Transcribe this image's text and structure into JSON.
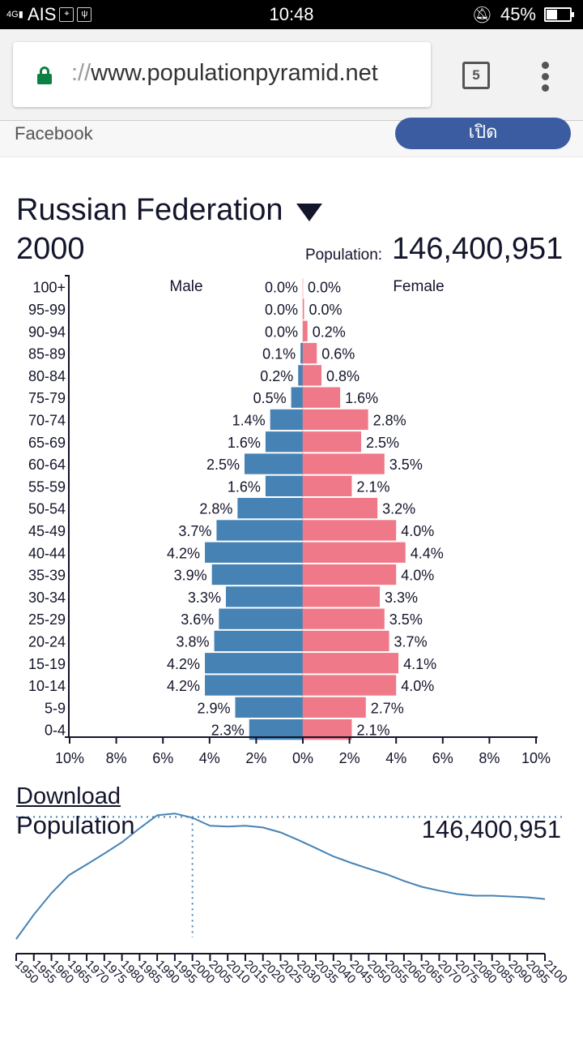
{
  "status_bar": {
    "network": "4G",
    "carrier": "AIS",
    "time": "10:48",
    "battery_percent_label": "45%",
    "battery_level": 0.45,
    "icons": [
      "signal-icon",
      "maps-notification-icon",
      "usb-icon",
      "mute-bell-icon",
      "battery-icon"
    ]
  },
  "browser": {
    "url_scheme": "://",
    "url_host": "www.populationpyramid.net",
    "tab_count": "5",
    "icons": [
      "lock-icon",
      "tabs-icon",
      "overflow-menu-icon"
    ]
  },
  "banner": {
    "label": "Facebook",
    "open_button": "เปิด"
  },
  "header": {
    "country": "Russian Federation",
    "year": "2000",
    "population_label": "Population:",
    "population_value": "146,400,951"
  },
  "colors": {
    "male": "#4682b4",
    "female": "#f07989",
    "line": "#4682b4",
    "text": "#13152b",
    "facebook": "#3b5ca0",
    "lock": "#0b8043"
  },
  "download_label": "Download",
  "chart_data": [
    {
      "type": "bar",
      "subtype": "population-pyramid",
      "title": "Russian Federation 2000",
      "legend": [
        "Male",
        "Female"
      ],
      "categories": [
        "100+",
        "95-99",
        "90-94",
        "85-89",
        "80-84",
        "75-79",
        "70-74",
        "65-69",
        "60-64",
        "55-59",
        "50-54",
        "45-49",
        "40-44",
        "35-39",
        "30-34",
        "25-29",
        "20-24",
        "15-19",
        "10-14",
        "5-9",
        "0-4"
      ],
      "series": [
        {
          "name": "Male",
          "values": [
            0.0,
            0.0,
            0.0,
            0.1,
            0.2,
            0.5,
            1.4,
            1.6,
            2.5,
            1.6,
            2.8,
            3.7,
            4.2,
            3.9,
            3.3,
            3.6,
            3.8,
            4.2,
            4.2,
            2.9,
            2.3
          ],
          "labels": [
            "0.0%",
            "0.0%",
            "0.0%",
            "0.1%",
            "0.2%",
            "0.5%",
            "1.4%",
            "1.6%",
            "2.5%",
            "1.6%",
            "2.8%",
            "3.7%",
            "4.2%",
            "3.9%",
            "3.3%",
            "3.6%",
            "3.8%",
            "4.2%",
            "4.2%",
            "2.9%",
            "2.3%"
          ]
        },
        {
          "name": "Female",
          "values": [
            0.0,
            0.05,
            0.2,
            0.6,
            0.8,
            1.6,
            2.8,
            2.5,
            3.5,
            2.1,
            3.2,
            4.0,
            4.4,
            4.0,
            3.3,
            3.5,
            3.7,
            4.1,
            4.0,
            2.7,
            2.1
          ],
          "labels": [
            "0.0%",
            "0.0%",
            "0.2%",
            "0.6%",
            "0.8%",
            "1.6%",
            "2.8%",
            "2.5%",
            "3.5%",
            "2.1%",
            "3.2%",
            "4.0%",
            "4.4%",
            "4.0%",
            "3.3%",
            "3.5%",
            "3.7%",
            "4.1%",
            "4.0%",
            "2.7%",
            "2.1%"
          ]
        }
      ],
      "xlim": [
        -10,
        10
      ],
      "xticks": [
        "10%",
        "8%",
        "6%",
        "4%",
        "2%",
        "0%",
        "2%",
        "4%",
        "6%",
        "8%",
        "10%"
      ],
      "xlabel": "",
      "ylabel": ""
    },
    {
      "type": "line",
      "title": "Population",
      "highlight_label": "146,400,951",
      "highlight_year": 2000,
      "x": [
        1950,
        1955,
        1960,
        1965,
        1970,
        1975,
        1980,
        1985,
        1990,
        1995,
        2000,
        2005,
        2010,
        2015,
        2020,
        2025,
        2030,
        2035,
        2040,
        2045,
        2050,
        2055,
        2060,
        2065,
        2070,
        2075,
        2080,
        2085,
        2090,
        2095,
        2100
      ],
      "y_millions": [
        102.8,
        111.6,
        119.3,
        125.8,
        129.6,
        133.5,
        137.6,
        142.6,
        147.3,
        147.9,
        146.4,
        143.5,
        143.2,
        143.5,
        142.9,
        141.1,
        138.4,
        135.5,
        132.5,
        130.2,
        128.1,
        126.1,
        123.7,
        121.6,
        120.2,
        119.0,
        118.4,
        118.4,
        118.1,
        117.8,
        117.2
      ],
      "xticks": [
        "1950",
        "1955",
        "1960",
        "1965",
        "1970",
        "1975",
        "1980",
        "1985",
        "1990",
        "1995",
        "2000",
        "2005",
        "2010",
        "2015",
        "2020",
        "2025",
        "2030",
        "2035",
        "2040",
        "2045",
        "2050",
        "2055",
        "2060",
        "2065",
        "2070",
        "2075",
        "2080",
        "2085",
        "2090",
        "2095",
        "2100"
      ],
      "ylim_millions": [
        102.8,
        150
      ]
    }
  ]
}
